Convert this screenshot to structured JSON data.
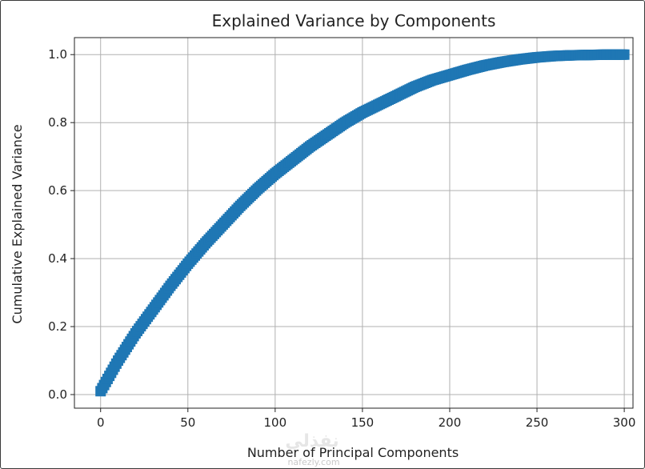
{
  "chart_data": {
    "type": "scatter",
    "title": "Explained Variance by Components",
    "xlabel": "Number of Principal Components",
    "ylabel": "Cumulative Explained Variance",
    "xlim": [
      -15,
      305
    ],
    "ylim": [
      -0.04,
      1.05
    ],
    "xticks": [
      0,
      50,
      100,
      150,
      200,
      250,
      300
    ],
    "yticks": [
      0.0,
      0.2,
      0.4,
      0.6,
      0.8,
      1.0
    ],
    "xtick_labels": [
      "0",
      "50",
      "100",
      "150",
      "200",
      "250",
      "300"
    ],
    "ytick_labels": [
      "0.0",
      "0.2",
      "0.4",
      "0.6",
      "0.8",
      "1.0"
    ],
    "grid": true,
    "series": [
      {
        "color": "#1f77b4",
        "marker": "square",
        "x": [
          0,
          10,
          20,
          30,
          40,
          50,
          60,
          70,
          80,
          90,
          100,
          110,
          120,
          130,
          140,
          150,
          160,
          170,
          180,
          190,
          200,
          210,
          220,
          230,
          240,
          250,
          260,
          270,
          280,
          290,
          300
        ],
        "y": [
          0.01,
          0.1,
          0.18,
          0.25,
          0.32,
          0.385,
          0.445,
          0.5,
          0.555,
          0.605,
          0.65,
          0.69,
          0.73,
          0.765,
          0.8,
          0.83,
          0.855,
          0.88,
          0.905,
          0.925,
          0.94,
          0.955,
          0.968,
          0.978,
          0.986,
          0.992,
          0.996,
          0.998,
          0.999,
          1.0,
          1.0
        ]
      }
    ]
  },
  "watermark": {
    "text": "nafezly.com",
    "logo_text": "نفذلي"
  }
}
